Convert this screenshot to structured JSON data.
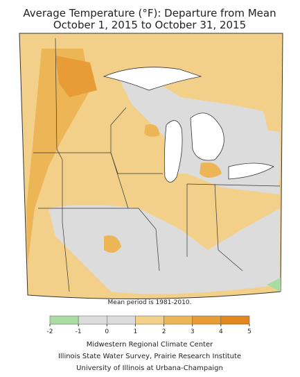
{
  "title_lines": [
    "Average Temperature (°F): Departure from Mean",
    "October 1, 2015 to October 31, 2015"
  ],
  "note": "Mean period is 1981-2010.",
  "colorbar": {
    "ticks": [
      -2,
      -1,
      0,
      1,
      2,
      3,
      4,
      5
    ],
    "colors": [
      "#a9dca3",
      "#dcdcdc",
      "#dcdcdc",
      "#f3d08a",
      "#ecb657",
      "#e89c36",
      "#e0871f"
    ]
  },
  "credits": [
    "Midwestern Regional Climate Center",
    "Illinois State Water Survey, Prairie Research Institute",
    "University of Illinois at Urbana-Champaign"
  ]
}
